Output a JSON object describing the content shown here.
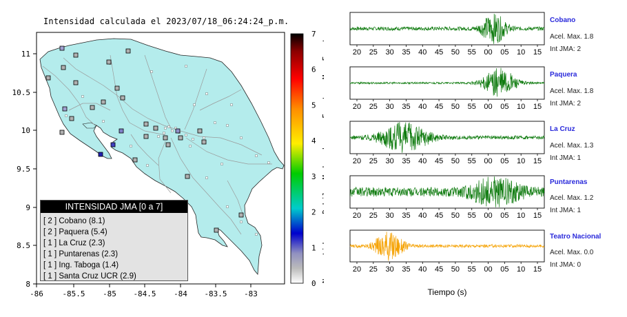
{
  "map": {
    "title": "Intensidad calculada el 2023/07/18_06:24:24_p.m.",
    "x_ticks": [
      "-86",
      "-85.5",
      "-85",
      "-84.5",
      "-84",
      "-83.5",
      "-83"
    ],
    "y_ticks": [
      "11",
      "10.5",
      "10",
      "9.5",
      "9",
      "8.5",
      "8"
    ],
    "colorbar": {
      "ticks": [
        "7",
        "6",
        "5",
        "4",
        "3",
        "2",
        "1",
        "0"
      ],
      "categories": [
        "Muy Fuerte",
        "Fuerte",
        "Moderado",
        "Debil",
        "No sentido"
      ],
      "colors": [
        "#000000",
        "#8b0000",
        "#ff0000",
        "#ff8c00",
        "#ffff00",
        "#00cc00",
        "#00cccc",
        "#0000cc",
        "#999999",
        "#ffffff"
      ]
    },
    "legend": {
      "title": "INTENSIDAD JMA [0 a 7]",
      "items": [
        "[ 2 ]  Cobano (8.1)",
        "[ 2 ]  Paquera (5.4)",
        "[ 1 ]  La Cruz (2.3)",
        "[ 1 ]  Puntarenas (2.3)",
        "[ 1 ]  Ing. Taboga (1.4)",
        "[ 1 ]  Santa Cruz UCR (2.9)"
      ]
    },
    "land_color": "#b4ecec"
  },
  "chart_data": {
    "type": "line",
    "xlabel": "Tiempo (s)",
    "x_ticks": [
      "20",
      "25",
      "30",
      "35",
      "40",
      "45",
      "50",
      "55",
      "00",
      "05",
      "10",
      "15"
    ],
    "series": [
      {
        "name": "Cobano",
        "acel": "Acel. Max. 1.8",
        "jma": "Int JMA: 2",
        "color": "#0d7a0d",
        "burst_center": 0.74,
        "burst_width": 0.06,
        "noise": 0.12,
        "burst": 0.95
      },
      {
        "name": "Paquera",
        "acel": "Acel. Max. 1.8",
        "jma": "Int JMA: 2",
        "color": "#0d7a0d",
        "burst_center": 0.77,
        "burst_width": 0.08,
        "noise": 0.06,
        "burst": 0.95
      },
      {
        "name": "La Cruz",
        "acel": "Acel. Max. 1.3",
        "jma": "Int JMA: 1",
        "color": "#0d7a0d",
        "burst_center": 0.28,
        "burst_width": 0.12,
        "noise": 0.12,
        "burst": 0.95
      },
      {
        "name": "Puntarenas",
        "acel": "Acel. Max. 1.2",
        "jma": "Int JMA: 1",
        "color": "#0d7a0d",
        "burst_center": 0.75,
        "burst_width": 0.12,
        "noise": 0.3,
        "burst": 0.8
      },
      {
        "name": "Teatro Nacional",
        "acel": "Acel. Max. 0.0",
        "jma": "Int JMA: 0",
        "color": "#f5a100",
        "burst_center": 0.2,
        "burst_width": 0.07,
        "noise": 0.1,
        "burst": 0.95
      }
    ]
  }
}
